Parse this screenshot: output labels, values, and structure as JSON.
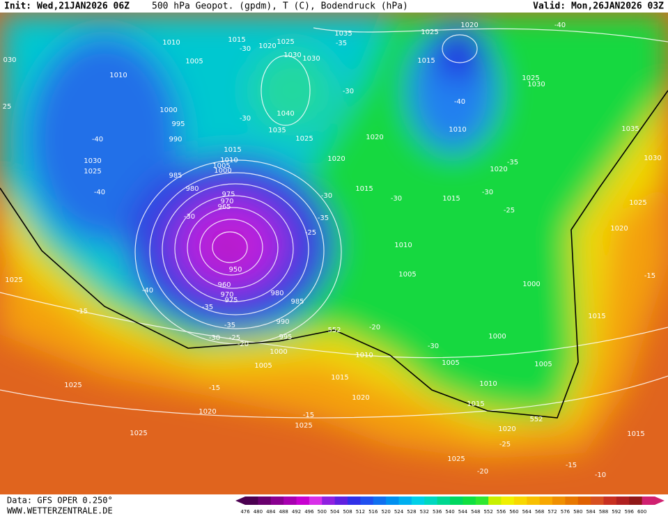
{
  "header": {
    "init": "Init: Wed,21JAN2026 06Z",
    "title": "500 hPa Geopot. (gpdm), T (C), Bodendruck (hPa)",
    "valid": "Valid: Mon,26JAN2026 03Z"
  },
  "footer": {
    "data": "Data: GFS OPER 0.250°",
    "site": "WWW.WETTERZENTRALE.DE"
  },
  "map": {
    "labels": [
      "1015",
      "-30",
      "1020",
      "1025",
      "1035",
      "-35",
      "1030",
      "1030",
      "1010",
      "1005",
      "1010",
      "1000",
      "995",
      "990",
      "985",
      "980",
      "975",
      "970",
      "965",
      "-30",
      "-40",
      "1030",
      "1025",
      "-40",
      "1015",
      "1010",
      "1005",
      "1000",
      "-30",
      "1040",
      "1035",
      "1025",
      "-30",
      "1020",
      "1020",
      "1015",
      "-30",
      "-35",
      "-25",
      "-30",
      "1025",
      "1020",
      "1015",
      "1025",
      "1030",
      "-40",
      "-40",
      "1010",
      "-35",
      "1020",
      "-30",
      "1015",
      "-25",
      "1025",
      "1035",
      "1030",
      "1020",
      "-15",
      "1010",
      "1005",
      "1000",
      "950",
      "-40",
      "960",
      "970",
      "975",
      "980",
      "985",
      "-35",
      "-35",
      "990",
      "-30",
      "-25",
      "995",
      "-20",
      "1000",
      "1005",
      "552",
      "-20",
      "-30",
      "1000",
      "1015",
      "1010",
      "1015",
      "1005",
      "1005",
      "1010",
      "1020",
      "1015",
      "1025",
      "-15",
      "1025",
      "-15",
      "1020",
      "-15",
      "1025",
      "1025",
      "552",
      "1020",
      "-25",
      "1025",
      "-20",
      "-15",
      "-10",
      "1015",
      "030",
      "25"
    ]
  },
  "colorbar": {
    "values": [
      476,
      480,
      484,
      488,
      492,
      496,
      500,
      504,
      508,
      512,
      516,
      520,
      524,
      528,
      532,
      536,
      540,
      544,
      548,
      552,
      556,
      560,
      564,
      568,
      572,
      576,
      580,
      584,
      588,
      592,
      596,
      600
    ],
    "colors": [
      "#4b0050",
      "#6a006e",
      "#8a0090",
      "#a800b0",
      "#c800d0",
      "#d830e8",
      "#9020e0",
      "#6020e0",
      "#3030e8",
      "#2050f0",
      "#1070f0",
      "#0090f0",
      "#00b0f0",
      "#00d0e8",
      "#00d8c0",
      "#00d890",
      "#00d860",
      "#10e040",
      "#30e830",
      "#c8f000",
      "#f0f000",
      "#f8d800",
      "#f8c000",
      "#f8a800",
      "#f09000",
      "#e87800",
      "#e06000",
      "#d85020",
      "#c83020",
      "#b02020",
      "#901818",
      "#d02070"
    ]
  }
}
